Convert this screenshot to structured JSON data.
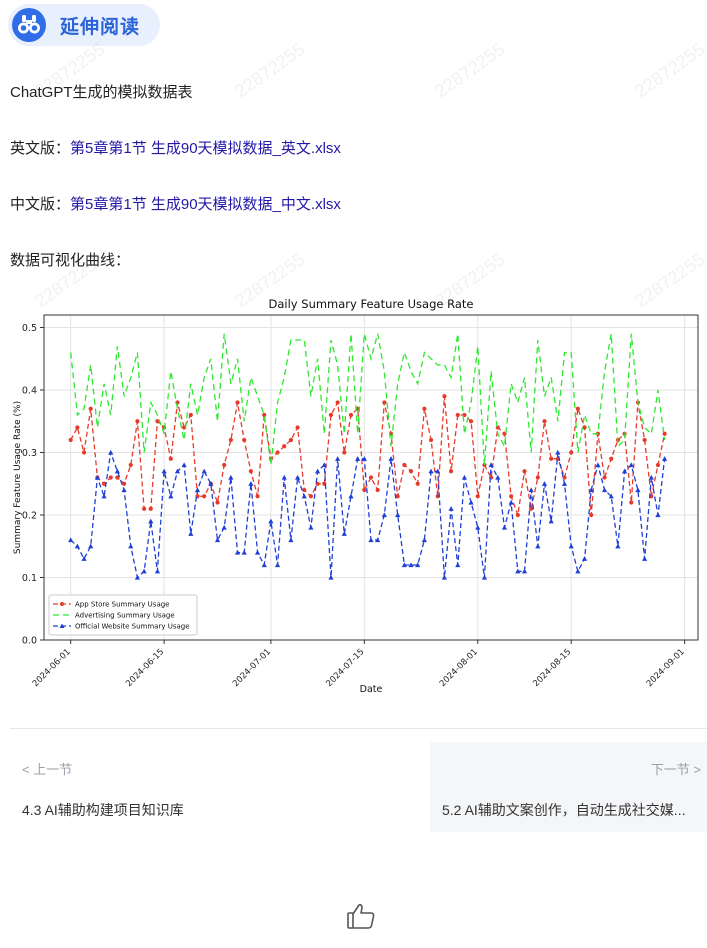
{
  "header": {
    "badge_label": "延伸阅读",
    "badge_icon": "binoculars-icon",
    "accent": "#2f6ee8"
  },
  "content": {
    "intro": "ChatGPT生成的模拟数据表",
    "english_prefix": "英文版：",
    "english_link": "第5章第1节 生成90天模拟数据_英文.xlsx",
    "chinese_prefix": "中文版：",
    "chinese_link": "第5章第1节 生成90天模拟数据_中文.xlsx",
    "curve_label": "数据可视化曲线："
  },
  "watermark": "22872255",
  "navigation": {
    "prev_hint": "< 上一节",
    "prev_title": "4.3 AI辅助构建项目知识库",
    "next_hint": "下一节 >",
    "next_title": "5.2 AI辅助文案创作，自动生成社交媒..."
  },
  "footer": {
    "like_icon": "thumbs-up-icon"
  },
  "chart_data": {
    "type": "line",
    "title": "Daily Summary Feature Usage Rate",
    "xlabel": "Date",
    "ylabel": "Summary Feature Usage Rate (%)",
    "x_start": "2024-06-01",
    "xlim": [
      "2024-05-28",
      "2024-09-03"
    ],
    "xticks": [
      "2024-06-01",
      "2024-06-15",
      "2024-07-01",
      "2024-07-15",
      "2024-08-01",
      "2024-08-15",
      "2024-09-01"
    ],
    "ylim": [
      0.0,
      0.52
    ],
    "yticks": [
      "0.0",
      "0.1",
      "0.2",
      "0.3",
      "0.4",
      "0.5"
    ],
    "grid": true,
    "legend": "bottom-left",
    "series": [
      {
        "name": "App Store Summary Usage",
        "color": "#e8392a",
        "marker": "circle",
        "dash": "5,3",
        "values": [
          0.32,
          0.34,
          0.3,
          0.37,
          0.26,
          0.25,
          0.26,
          0.26,
          0.25,
          0.28,
          0.35,
          0.21,
          0.21,
          0.35,
          0.34,
          0.29,
          0.38,
          0.34,
          0.36,
          0.23,
          0.23,
          0.25,
          0.22,
          0.28,
          0.32,
          0.38,
          0.32,
          0.27,
          0.23,
          0.36,
          0.29,
          0.3,
          0.31,
          0.32,
          0.34,
          0.24,
          0.23,
          0.25,
          0.25,
          0.36,
          0.38,
          0.3,
          0.36,
          0.37,
          0.24,
          0.26,
          0.24,
          0.38,
          0.33,
          0.23,
          0.28,
          0.27,
          0.25,
          0.37,
          0.32,
          0.23,
          0.39,
          0.27,
          0.36,
          0.36,
          0.35,
          0.23,
          0.28,
          0.26,
          0.34,
          0.33,
          0.23,
          0.2,
          0.27,
          0.21,
          0.26,
          0.35,
          0.29,
          0.29,
          0.26,
          0.3,
          0.37,
          0.34,
          0.2,
          0.33,
          0.26,
          0.29,
          0.32,
          0.33,
          0.22,
          0.38,
          0.32,
          0.23,
          0.28,
          0.33
        ]
      },
      {
        "name": "Advertising Summary Usage",
        "color": "#2ee82e",
        "marker": "none",
        "dash": "6,4",
        "values": [
          0.46,
          0.36,
          0.37,
          0.44,
          0.34,
          0.41,
          0.36,
          0.47,
          0.39,
          0.42,
          0.46,
          0.3,
          0.38,
          0.36,
          0.33,
          0.43,
          0.37,
          0.32,
          0.41,
          0.36,
          0.42,
          0.45,
          0.35,
          0.49,
          0.41,
          0.45,
          0.35,
          0.42,
          0.39,
          0.36,
          0.28,
          0.38,
          0.42,
          0.48,
          0.48,
          0.48,
          0.39,
          0.45,
          0.33,
          0.48,
          0.44,
          0.33,
          0.49,
          0.33,
          0.49,
          0.45,
          0.49,
          0.43,
          0.31,
          0.41,
          0.46,
          0.43,
          0.41,
          0.46,
          0.45,
          0.44,
          0.44,
          0.42,
          0.49,
          0.33,
          0.38,
          0.47,
          0.28,
          0.43,
          0.33,
          0.31,
          0.41,
          0.38,
          0.42,
          0.3,
          0.48,
          0.39,
          0.42,
          0.35,
          0.46,
          0.46,
          0.3,
          0.36,
          0.33,
          0.33,
          0.43,
          0.49,
          0.31,
          0.32,
          0.49,
          0.38,
          0.34,
          0.33,
          0.4,
          0.32
        ]
      },
      {
        "name": "Official Website Summary Usage",
        "color": "#1f3fd6",
        "marker": "triangle",
        "dash": "5,3",
        "values": [
          0.16,
          0.15,
          0.13,
          0.15,
          0.26,
          0.23,
          0.3,
          0.27,
          0.24,
          0.15,
          0.1,
          0.11,
          0.19,
          0.11,
          0.27,
          0.23,
          0.27,
          0.28,
          0.17,
          0.24,
          0.27,
          0.25,
          0.16,
          0.18,
          0.26,
          0.14,
          0.14,
          0.25,
          0.14,
          0.12,
          0.19,
          0.12,
          0.26,
          0.16,
          0.26,
          0.23,
          0.18,
          0.27,
          0.28,
          0.1,
          0.29,
          0.17,
          0.23,
          0.29,
          0.29,
          0.16,
          0.16,
          0.2,
          0.29,
          0.2,
          0.12,
          0.12,
          0.12,
          0.16,
          0.27,
          0.27,
          0.1,
          0.21,
          0.12,
          0.26,
          0.22,
          0.18,
          0.1,
          0.28,
          0.26,
          0.18,
          0.22,
          0.11,
          0.11,
          0.24,
          0.15,
          0.25,
          0.19,
          0.3,
          0.25,
          0.15,
          0.11,
          0.13,
          0.24,
          0.28,
          0.24,
          0.23,
          0.15,
          0.27,
          0.28,
          0.24,
          0.13,
          0.26,
          0.2,
          0.29
        ]
      }
    ]
  }
}
